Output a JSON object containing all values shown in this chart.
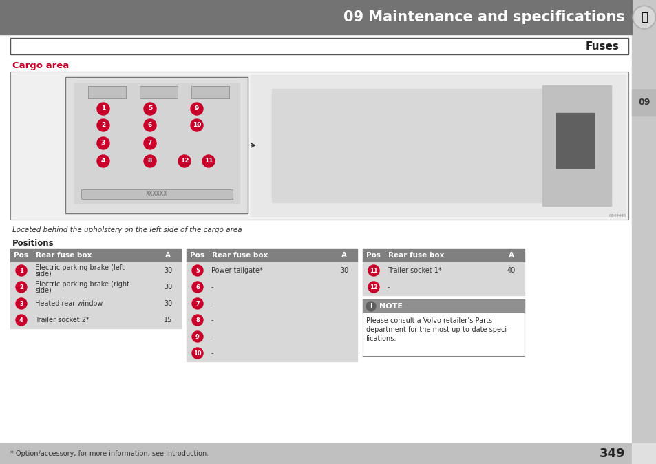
{
  "page_title": "09 Maintenance and specifications",
  "section_title": "Fuses",
  "subsection_title": "Cargo area",
  "caption": "Located behind the upholstery on the left side of the cargo area",
  "positions_label": "Positions",
  "table1_header": [
    "Pos",
    "Rear fuse box",
    "A"
  ],
  "table1_rows": [
    [
      "1",
      "Electric parking brake (left\nside)",
      "30"
    ],
    [
      "2",
      "Electric parking brake (right\nside)",
      "30"
    ],
    [
      "3",
      "Heated rear window",
      "30"
    ],
    [
      "4",
      "Trailer socket 2*",
      "15"
    ]
  ],
  "table2_header": [
    "Pos",
    "Rear fuse box",
    "A"
  ],
  "table2_rows": [
    [
      "5",
      "Power tailgate*",
      "30"
    ],
    [
      "6",
      "-",
      ""
    ],
    [
      "7",
      "-",
      ""
    ],
    [
      "8",
      "-",
      ""
    ],
    [
      "9",
      "-",
      ""
    ],
    [
      "10",
      "-",
      ""
    ]
  ],
  "table3_header": [
    "Pos",
    "Rear fuse box",
    "A"
  ],
  "table3_rows": [
    [
      "11",
      "Trailer socket 1*",
      "40"
    ],
    [
      "12",
      "-",
      ""
    ]
  ],
  "note_text": "Please consult a Volvo retailer’s Parts\ndepartment for the most up-to-date speci-\nfications.",
  "footer_text": "* Option/accessory, for more information, see Introduction.",
  "page_number": "349",
  "tab_label": "09",
  "header_bg": "#737373",
  "red_circle_color": "#c8002a",
  "cargo_area_title_color": "#c8002a",
  "table_header_bg": "#808080",
  "table_row_bg": "#d8d8d8",
  "note_header_bg": "#909090",
  "footer_bg": "#c0c0c0",
  "sidebar_bg": "#c8c8c8",
  "tab_active_bg": "#c0c0c0"
}
